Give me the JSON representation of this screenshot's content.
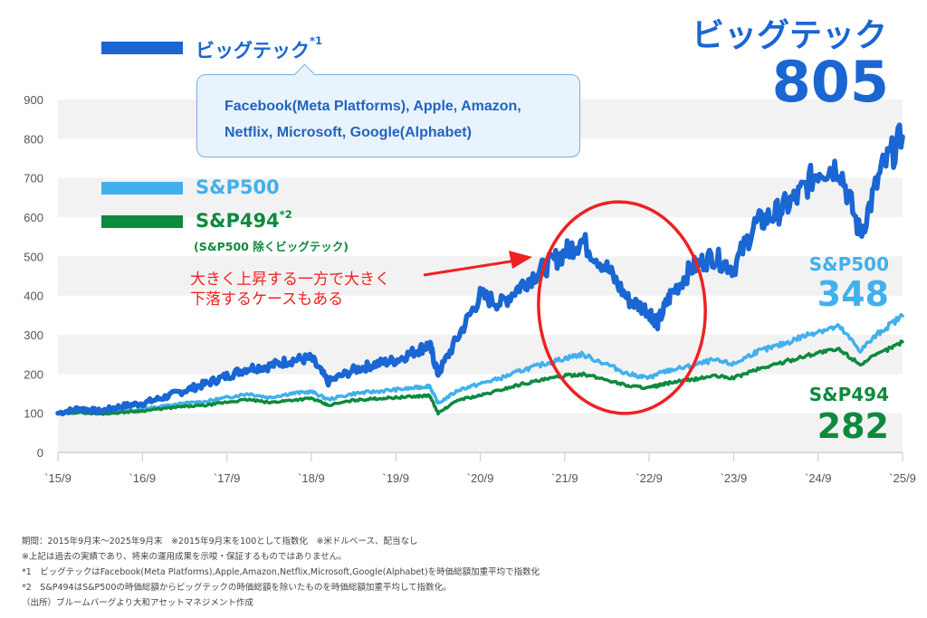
{
  "colors": {
    "bigtech": "#1a66d2",
    "sp500": "#41b0ec",
    "sp494": "#0e8a3e",
    "annotation": "#ee2222",
    "grid_band": "#f2f2f3",
    "callout_bg": "#e8f3fd",
    "callout_border": "#7aaee0"
  },
  "legend": {
    "bigtech": {
      "label": "ビッグテック",
      "note": "*1"
    },
    "sp500": {
      "label": "S&P500"
    },
    "sp494": {
      "label": "S&P494",
      "note": "*2",
      "sub": "(S&P500 除くビッグテック)"
    }
  },
  "callout": {
    "line1": "Facebook(Meta Platforms), Apple, Amazon,",
    "line2": "Netflix, Microsoft, Google(Alphabet)"
  },
  "end_labels": {
    "bigtech": {
      "name": "ビッグテック",
      "value": "805"
    },
    "sp500": {
      "name": "S&P500",
      "value": "348"
    },
    "sp494": {
      "name": "S&P494",
      "value": "282"
    }
  },
  "annotation": {
    "line1": "大きく上昇する一方で大きく",
    "line2": "下落するケースもある"
  },
  "footnotes": [
    "期間：2015年9月末〜2025年9月末　※2015年9月末を100として指数化　※米ドルベース、配当なし",
    "※上記は過去の実績であり、将来の運用成果を示唆・保証するものではありません。",
    "*1　ビッグテックはFacebook(Meta Platforms),Apple,Amazon,Netflix,Microsoft,Google(Alphabet)を時価総額加重平均で指数化",
    "*2　S&P494はS&P500の時価総額からビッグテックの時価総額を除いたものを時価総額加重平均して指数化。",
    "（出所）ブルームバーグより大和アセットマネジメント作成"
  ],
  "chart_data": {
    "type": "line",
    "title": "",
    "xlabel": "",
    "ylabel": "",
    "ylim": [
      0,
      900
    ],
    "yticks": [
      0,
      100,
      200,
      300,
      400,
      500,
      600,
      700,
      800,
      900
    ],
    "xticks": [
      "`15/9",
      "`16/9",
      "`17/9",
      "`18/9",
      "`19/9",
      "`20/9",
      "`21/9",
      "`22/9",
      "`23/9",
      "`24/9",
      "`25/9"
    ],
    "grid": "alternating horizontal bands",
    "legend_position": "top-left",
    "x": [
      2015.75,
      2016.0,
      2016.25,
      2016.5,
      2016.75,
      2017.0,
      2017.25,
      2017.5,
      2017.75,
      2018.0,
      2018.25,
      2018.5,
      2018.75,
      2018.95,
      2019.25,
      2019.5,
      2019.75,
      2020.0,
      2020.15,
      2020.25,
      2020.5,
      2020.75,
      2021.0,
      2021.25,
      2021.5,
      2021.75,
      2021.95,
      2022.25,
      2022.5,
      2022.75,
      2022.85,
      2023.0,
      2023.25,
      2023.5,
      2023.75,
      2024.0,
      2024.25,
      2024.5,
      2024.75,
      2025.0,
      2025.25,
      2025.5,
      2025.75
    ],
    "series": [
      {
        "name": "ビッグテック",
        "values": [
          100,
          112,
          105,
          118,
          125,
          140,
          158,
          175,
          195,
          215,
          220,
          235,
          240,
          180,
          210,
          225,
          235,
          260,
          275,
          200,
          300,
          400,
          380,
          430,
          470,
          510,
          540,
          470,
          390,
          360,
          330,
          400,
          470,
          500,
          470,
          580,
          610,
          650,
          720,
          730,
          555,
          720,
          805
        ]
      },
      {
        "name": "S&P500",
        "values": [
          100,
          103,
          100,
          105,
          110,
          118,
          125,
          130,
          140,
          150,
          140,
          150,
          155,
          135,
          150,
          155,
          160,
          165,
          170,
          125,
          160,
          175,
          190,
          210,
          225,
          240,
          250,
          225,
          200,
          190,
          200,
          210,
          220,
          235,
          225,
          255,
          270,
          290,
          310,
          320,
          260,
          310,
          348
        ]
      },
      {
        "name": "S&P494",
        "values": [
          100,
          102,
          98,
          102,
          106,
          112,
          117,
          120,
          128,
          135,
          127,
          133,
          138,
          120,
          133,
          137,
          140,
          143,
          145,
          100,
          135,
          145,
          160,
          175,
          185,
          195,
          200,
          185,
          170,
          165,
          170,
          178,
          185,
          195,
          190,
          210,
          225,
          240,
          255,
          262,
          225,
          255,
          282
        ]
      }
    ],
    "end_values": {
      "ビッグテック": 805,
      "S&P500": 348,
      "S&P494": 282
    }
  }
}
